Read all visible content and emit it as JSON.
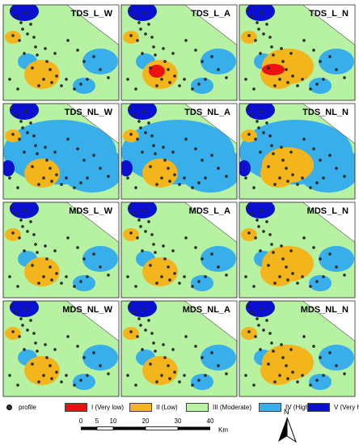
{
  "panels": [
    {
      "title": "TDS_L_W"
    },
    {
      "title": "TDS_L_A"
    },
    {
      "title": "TDS_L_N"
    },
    {
      "title": "TDS_NL_W"
    },
    {
      "title": "TDS_NL_A"
    },
    {
      "title": "TDS_NL_N"
    },
    {
      "title": "MDS_L_W"
    },
    {
      "title": "MDS_L_A"
    },
    {
      "title": "MDS_L_N"
    },
    {
      "title": "MDS_NL_W"
    },
    {
      "title": "MDS_NL_A"
    },
    {
      "title": "MDS_NL_N"
    }
  ],
  "legend": {
    "profile_label": "profile",
    "classes": [
      {
        "label": "I (Very low)",
        "color": "#ee1111"
      },
      {
        "label": "II (Low)",
        "color": "#f4b51c"
      },
      {
        "label": "III (Moderate)",
        "color": "#b6f2a2"
      },
      {
        "label": "IV (High)",
        "color": "#38aeea"
      },
      {
        "label": "V (Very high",
        "color": "#0b0fd0"
      }
    ]
  },
  "scale": {
    "ticks": [
      "0",
      "5",
      "10",
      "20",
      "30",
      "40"
    ],
    "unit": "Km"
  },
  "north_label": "N",
  "colors": {
    "moderate": "#b6f2a2",
    "low": "#f4b51c",
    "high": "#38aeea",
    "very_high": "#0b0fd0",
    "very_low": "#ee1111",
    "profile_dot": "#333333"
  }
}
